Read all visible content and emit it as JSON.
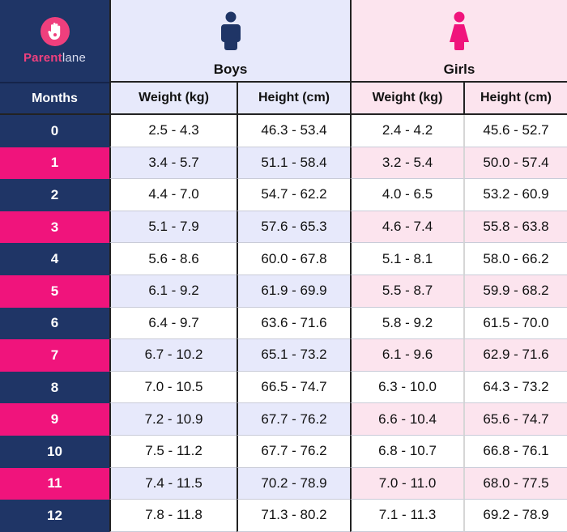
{
  "brand": {
    "name_part1": "Parent",
    "name_part2": "lane",
    "logo_icon": "hand-icon",
    "colors": {
      "navy": "#1f3566",
      "pink": "#f0147c",
      "boys_bg": "#e7e9fb",
      "girls_bg": "#fce4ee"
    }
  },
  "header": {
    "months_label": "Months",
    "boys": {
      "label": "Boys",
      "icon": "boy-icon",
      "weight_label": "Weight (kg)",
      "height_label": "Height (cm)"
    },
    "girls": {
      "label": "Girls",
      "icon": "girl-icon",
      "weight_label": "Weight (kg)",
      "height_label": "Height (cm)"
    }
  },
  "rows": [
    {
      "month": "0",
      "boys_weight": "2.5 - 4.3",
      "boys_height": "46.3 - 53.4",
      "girls_weight": "2.4 - 4.2",
      "girls_height": "45.6 - 52.7"
    },
    {
      "month": "1",
      "boys_weight": "3.4 - 5.7",
      "boys_height": "51.1 - 58.4",
      "girls_weight": "3.2 - 5.4",
      "girls_height": "50.0 - 57.4"
    },
    {
      "month": "2",
      "boys_weight": "4.4 - 7.0",
      "boys_height": "54.7 - 62.2",
      "girls_weight": "4.0 - 6.5",
      "girls_height": "53.2 - 60.9"
    },
    {
      "month": "3",
      "boys_weight": "5.1 - 7.9",
      "boys_height": "57.6 - 65.3",
      "girls_weight": "4.6 - 7.4",
      "girls_height": "55.8 - 63.8"
    },
    {
      "month": "4",
      "boys_weight": "5.6 - 8.6",
      "boys_height": "60.0 - 67.8",
      "girls_weight": "5.1 - 8.1",
      "girls_height": "58.0 - 66.2"
    },
    {
      "month": "5",
      "boys_weight": "6.1 - 9.2",
      "boys_height": "61.9 - 69.9",
      "girls_weight": "5.5 - 8.7",
      "girls_height": "59.9 - 68.2"
    },
    {
      "month": "6",
      "boys_weight": "6.4 - 9.7",
      "boys_height": "63.6 - 71.6",
      "girls_weight": "5.8 - 9.2",
      "girls_height": "61.5 - 70.0"
    },
    {
      "month": "7",
      "boys_weight": "6.7 - 10.2",
      "boys_height": "65.1 - 73.2",
      "girls_weight": "6.1 - 9.6",
      "girls_height": "62.9 - 71.6"
    },
    {
      "month": "8",
      "boys_weight": "7.0 - 10.5",
      "boys_height": "66.5 - 74.7",
      "girls_weight": "6.3 - 10.0",
      "girls_height": "64.3 - 73.2"
    },
    {
      "month": "9",
      "boys_weight": "7.2 - 10.9",
      "boys_height": "67.7 - 76.2",
      "girls_weight": "6.6 - 10.4",
      "girls_height": "65.6 - 74.7"
    },
    {
      "month": "10",
      "boys_weight": "7.5 - 11.2",
      "boys_height": "67.7 - 76.2",
      "girls_weight": "6.8 - 10.7",
      "girls_height": "66.8 - 76.1"
    },
    {
      "month": "11",
      "boys_weight": "7.4 - 11.5",
      "boys_height": "70.2 - 78.9",
      "girls_weight": "7.0 - 11.0",
      "girls_height": "68.0 - 77.5"
    },
    {
      "month": "12",
      "boys_weight": "7.8 - 11.8",
      "boys_height": "71.3 - 80.2",
      "girls_weight": "7.1 - 11.3",
      "girls_height": "69.2 - 78.9"
    }
  ]
}
